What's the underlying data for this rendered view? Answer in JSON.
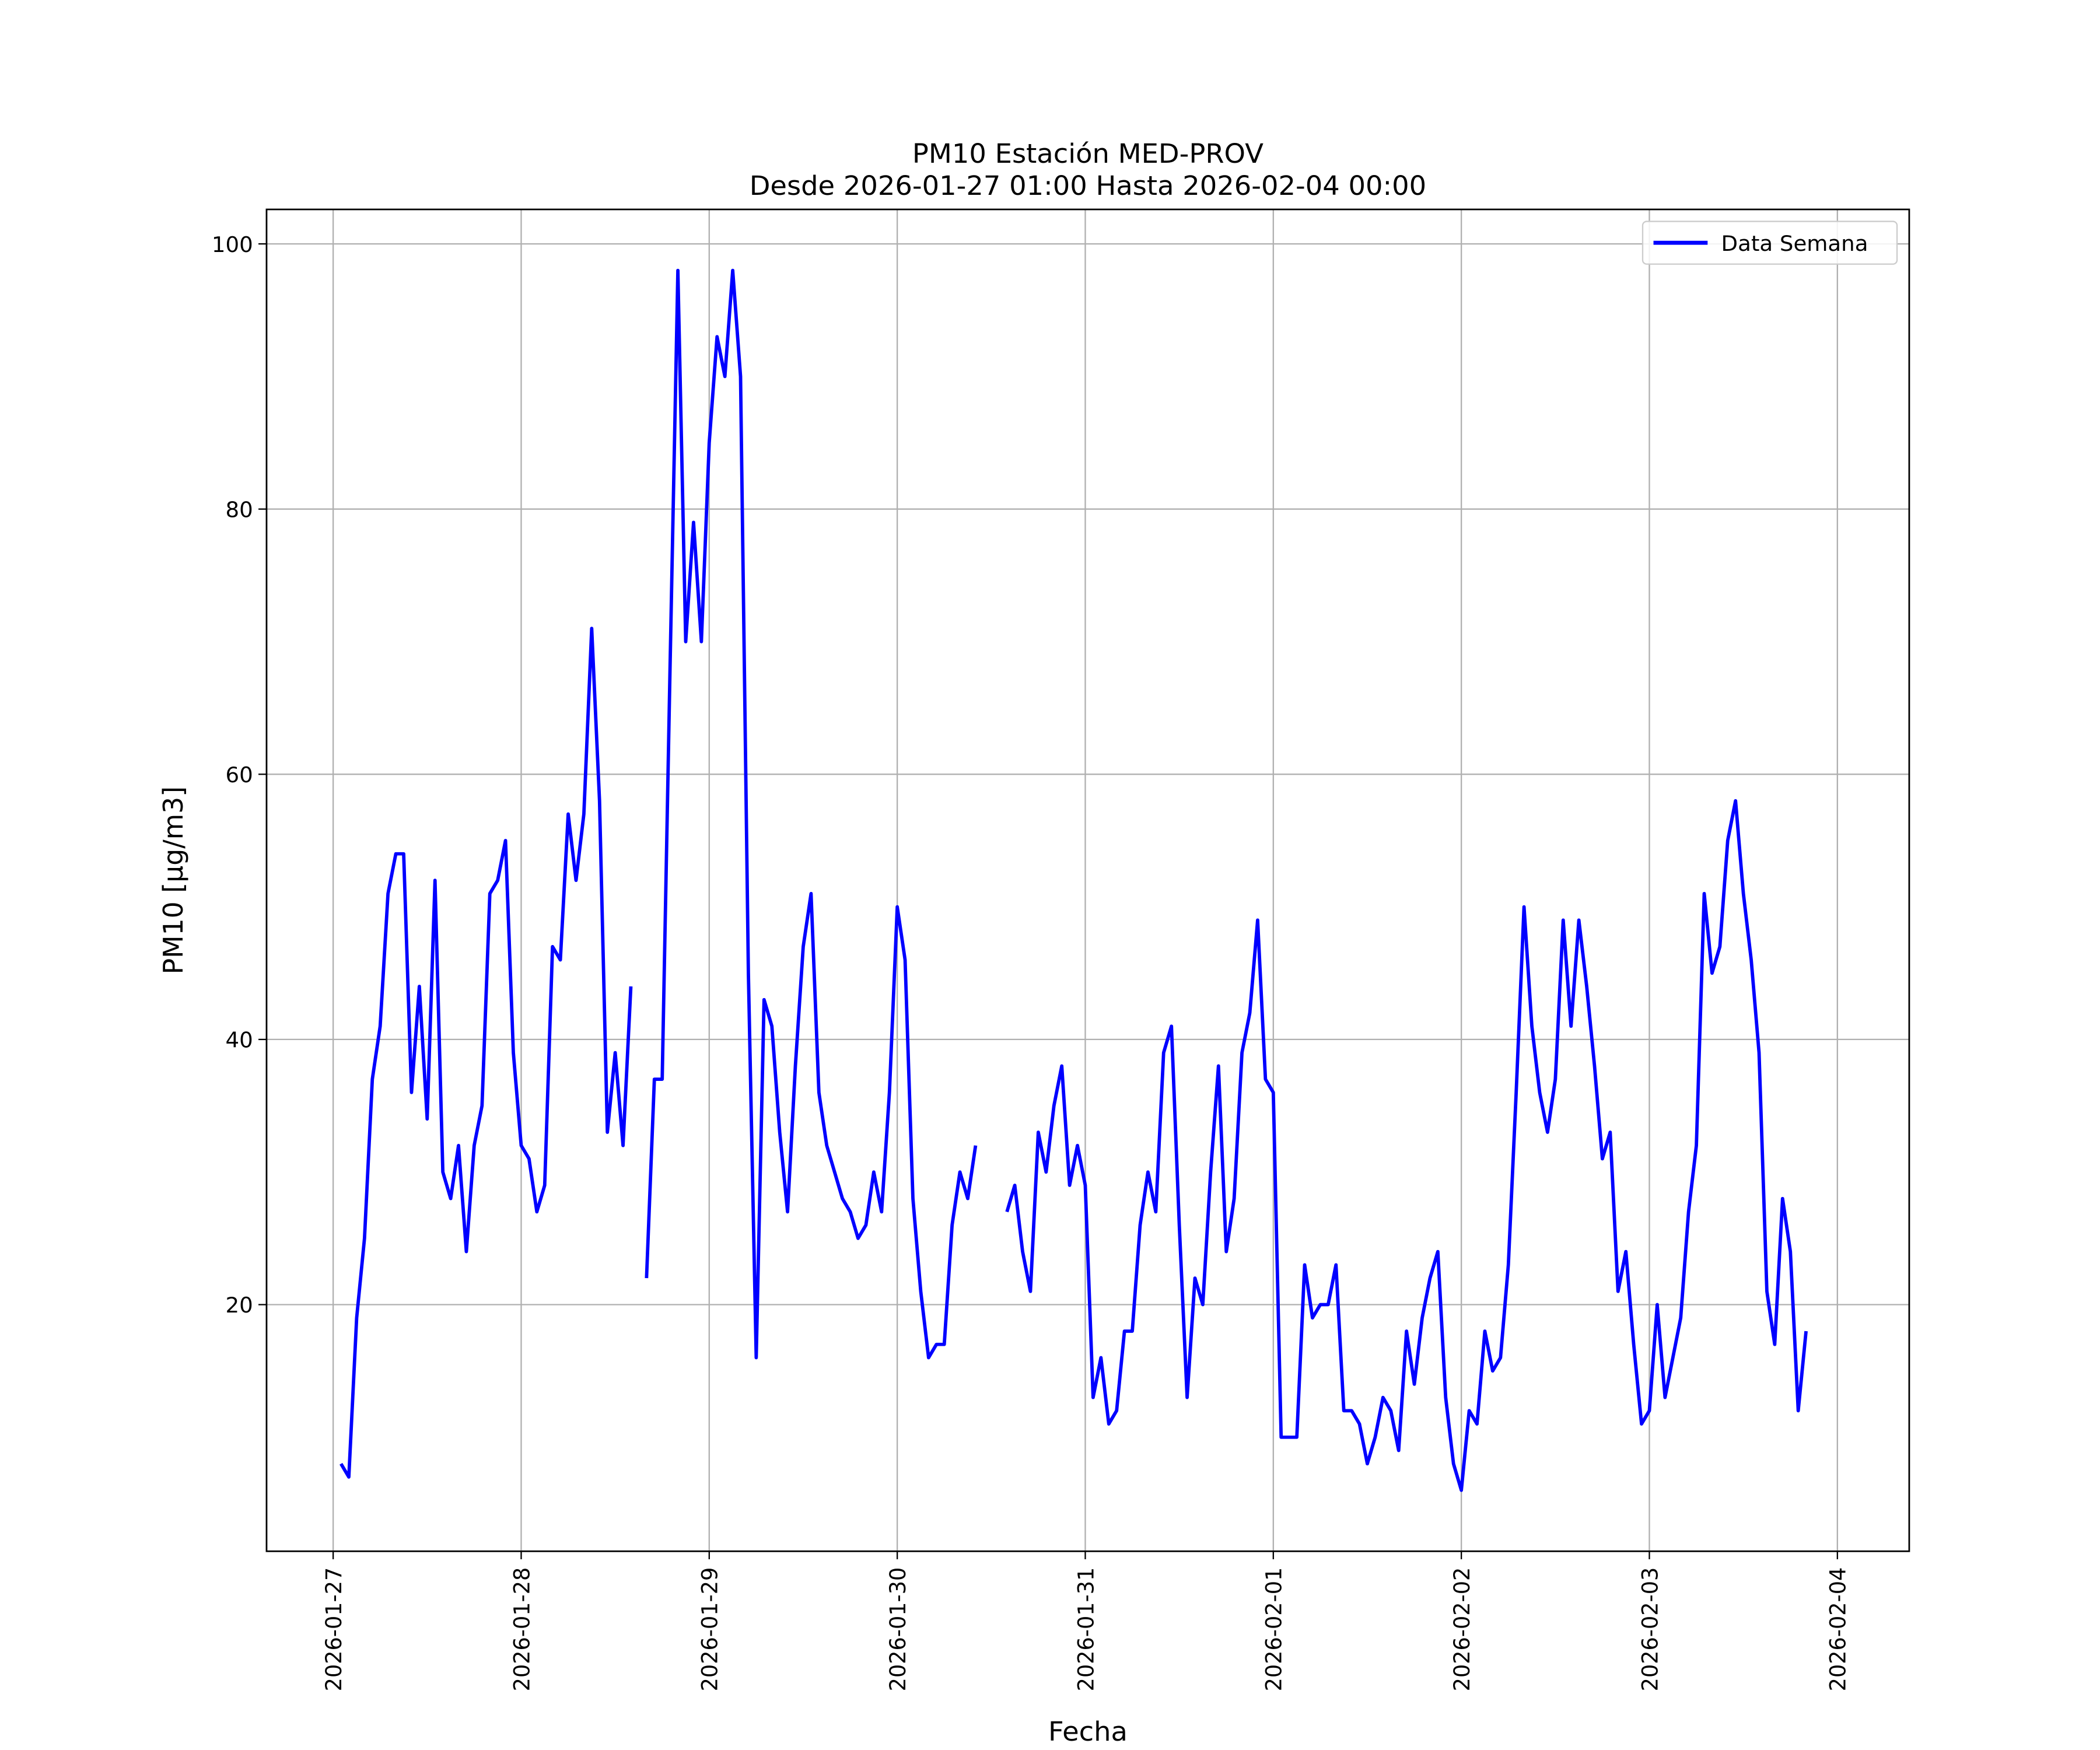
{
  "chart_data": {
    "type": "line",
    "title": "PM10 Estación MED-PROV",
    "subtitle": "Desde 2026-01-27 01:00 Hasta 2026-02-04 00:00",
    "xlabel": "Fecha",
    "ylabel": "PM10 [μg/m3]",
    "x": [
      "2026-01-27 01:00",
      "2026-01-27 02:00",
      "2026-01-27 03:00",
      "2026-01-27 04:00",
      "2026-01-27 05:00",
      "2026-01-27 06:00",
      "2026-01-27 07:00",
      "2026-01-27 08:00",
      "2026-01-27 09:00",
      "2026-01-27 10:00",
      "2026-01-27 11:00",
      "2026-01-27 12:00",
      "2026-01-27 13:00",
      "2026-01-27 14:00",
      "2026-01-27 15:00",
      "2026-01-27 16:00",
      "2026-01-27 17:00",
      "2026-01-27 18:00",
      "2026-01-27 19:00",
      "2026-01-27 20:00",
      "2026-01-27 21:00",
      "2026-01-27 22:00",
      "2026-01-27 23:00",
      "2026-01-28 00:00",
      "2026-01-28 01:00",
      "2026-01-28 02:00",
      "2026-01-28 03:00",
      "2026-01-28 04:00",
      "2026-01-28 05:00",
      "2026-01-28 06:00",
      "2026-01-28 07:00",
      "2026-01-28 08:00",
      "2026-01-28 09:00",
      "2026-01-28 10:00",
      "2026-01-28 11:00",
      "2026-01-28 12:00",
      "2026-01-28 13:00",
      "2026-01-28 14:00",
      "2026-01-28 15:00",
      "2026-01-28 16:00",
      "2026-01-28 17:00",
      "2026-01-28 18:00",
      "2026-01-28 19:00",
      "2026-01-28 20:00",
      "2026-01-28 21:00",
      "2026-01-28 22:00",
      "2026-01-28 23:00",
      "2026-01-29 00:00",
      "2026-01-29 01:00",
      "2026-01-29 02:00",
      "2026-01-29 03:00",
      "2026-01-29 04:00",
      "2026-01-29 05:00",
      "2026-01-29 06:00",
      "2026-01-29 07:00",
      "2026-01-29 08:00",
      "2026-01-29 09:00",
      "2026-01-29 10:00",
      "2026-01-29 11:00",
      "2026-01-29 12:00",
      "2026-01-29 13:00",
      "2026-01-29 14:00",
      "2026-01-29 15:00",
      "2026-01-29 16:00",
      "2026-01-29 17:00",
      "2026-01-29 18:00",
      "2026-01-29 19:00",
      "2026-01-29 20:00",
      "2026-01-29 21:00",
      "2026-01-29 22:00",
      "2026-01-29 23:00",
      "2026-01-30 00:00",
      "2026-01-30 01:00",
      "2026-01-30 02:00",
      "2026-01-30 03:00",
      "2026-01-30 04:00",
      "2026-01-30 05:00",
      "2026-01-30 06:00",
      "2026-01-30 07:00",
      "2026-01-30 08:00",
      "2026-01-30 09:00",
      "2026-01-30 10:00",
      "2026-01-30 11:00",
      "2026-01-30 12:00",
      "2026-01-30 13:00",
      "2026-01-30 14:00",
      "2026-01-30 15:00",
      "2026-01-30 16:00",
      "2026-01-30 17:00",
      "2026-01-30 18:00",
      "2026-01-30 19:00",
      "2026-01-30 20:00",
      "2026-01-30 21:00",
      "2026-01-30 22:00",
      "2026-01-30 23:00",
      "2026-01-31 00:00",
      "2026-01-31 01:00",
      "2026-01-31 02:00",
      "2026-01-31 03:00",
      "2026-01-31 04:00",
      "2026-01-31 05:00",
      "2026-01-31 06:00",
      "2026-01-31 07:00",
      "2026-01-31 08:00",
      "2026-01-31 09:00",
      "2026-01-31 10:00",
      "2026-01-31 11:00",
      "2026-01-31 12:00",
      "2026-01-31 13:00",
      "2026-01-31 14:00",
      "2026-01-31 15:00",
      "2026-01-31 16:00",
      "2026-01-31 17:00",
      "2026-01-31 18:00",
      "2026-01-31 19:00",
      "2026-01-31 20:00",
      "2026-01-31 21:00",
      "2026-01-31 22:00",
      "2026-01-31 23:00",
      "2026-02-01 00:00",
      "2026-02-01 01:00",
      "2026-02-01 02:00",
      "2026-02-01 03:00",
      "2026-02-01 04:00",
      "2026-02-01 05:00",
      "2026-02-01 06:00",
      "2026-02-01 07:00",
      "2026-02-01 08:00",
      "2026-02-01 09:00",
      "2026-02-01 10:00",
      "2026-02-01 11:00",
      "2026-02-01 12:00",
      "2026-02-01 13:00",
      "2026-02-01 14:00",
      "2026-02-01 15:00",
      "2026-02-01 16:00",
      "2026-02-01 17:00",
      "2026-02-01 18:00",
      "2026-02-01 19:00",
      "2026-02-01 20:00",
      "2026-02-01 21:00",
      "2026-02-01 22:00",
      "2026-02-01 23:00",
      "2026-02-02 00:00",
      "2026-02-02 01:00",
      "2026-02-02 02:00",
      "2026-02-02 03:00",
      "2026-02-02 04:00",
      "2026-02-02 05:00",
      "2026-02-02 06:00",
      "2026-02-02 07:00",
      "2026-02-02 08:00",
      "2026-02-02 09:00",
      "2026-02-02 10:00",
      "2026-02-02 11:00",
      "2026-02-02 12:00",
      "2026-02-02 13:00",
      "2026-02-02 14:00",
      "2026-02-02 15:00",
      "2026-02-02 16:00",
      "2026-02-02 17:00",
      "2026-02-02 18:00",
      "2026-02-02 19:00",
      "2026-02-02 20:00",
      "2026-02-02 21:00",
      "2026-02-02 22:00",
      "2026-02-02 23:00",
      "2026-02-03 00:00",
      "2026-02-03 01:00",
      "2026-02-03 02:00",
      "2026-02-03 03:00",
      "2026-02-03 04:00",
      "2026-02-03 05:00",
      "2026-02-03 06:00",
      "2026-02-03 07:00",
      "2026-02-03 08:00",
      "2026-02-03 09:00",
      "2026-02-03 10:00",
      "2026-02-03 11:00",
      "2026-02-03 12:00",
      "2026-02-03 13:00",
      "2026-02-03 14:00",
      "2026-02-03 15:00",
      "2026-02-03 16:00",
      "2026-02-03 17:00",
      "2026-02-03 18:00",
      "2026-02-03 19:00",
      "2026-02-03 20:00"
    ],
    "series": [
      {
        "name": "Data Semana",
        "color": "#0000ff",
        "values": [
          8,
          7,
          19,
          25,
          37,
          41,
          51,
          54,
          54,
          36,
          44,
          34,
          52,
          30,
          28,
          32,
          24,
          32,
          35,
          51,
          52,
          55,
          39,
          32,
          31,
          27,
          29,
          47,
          46,
          57,
          52,
          57,
          71,
          58,
          33,
          39,
          32,
          44,
          null,
          22,
          37,
          37,
          68,
          98,
          70,
          79,
          70,
          85,
          93,
          90,
          98,
          90,
          45,
          16,
          43,
          41,
          33,
          27,
          38,
          47,
          51,
          36,
          32,
          30,
          28,
          27,
          25,
          26,
          30,
          27,
          36,
          50,
          46,
          28,
          21,
          16,
          17,
          17,
          26,
          30,
          28,
          32,
          null,
          null,
          null,
          27,
          29,
          24,
          21,
          33,
          30,
          35,
          38,
          29,
          32,
          29,
          13,
          16,
          11,
          12,
          18,
          18,
          26,
          30,
          27,
          39,
          41,
          26,
          13,
          22,
          20,
          30,
          38,
          24,
          28,
          39,
          42,
          49,
          37,
          36,
          10,
          10,
          10,
          23,
          19,
          20,
          20,
          23,
          12,
          12,
          11,
          8,
          10,
          13,
          12,
          9,
          18,
          14,
          19,
          22,
          24,
          13,
          8,
          6,
          12,
          11,
          18,
          15,
          16,
          23,
          36,
          50,
          41,
          36,
          33,
          37,
          49,
          41,
          49,
          44,
          38,
          31,
          33,
          21,
          24,
          17,
          11,
          12,
          20,
          13,
          16,
          19,
          27,
          32,
          51,
          45,
          47,
          55,
          58,
          51,
          46,
          39,
          21,
          17,
          28,
          24,
          12,
          18
        ]
      }
    ],
    "xlim": [
      "2026-01-26 15:30",
      "2026-02-04 09:10"
    ],
    "xticks": [
      "2026-01-27",
      "2026-01-28",
      "2026-01-29",
      "2026-01-30",
      "2026-01-31",
      "2026-02-01",
      "2026-02-02",
      "2026-02-03",
      "2026-02-04"
    ],
    "ylim": [
      1.4,
      102.6
    ],
    "yticks": [
      20,
      40,
      60,
      80,
      100
    ],
    "grid": true,
    "legend": "upper right"
  }
}
